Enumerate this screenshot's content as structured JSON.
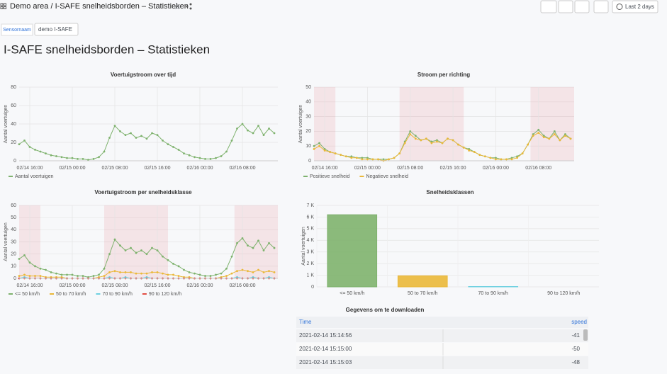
{
  "header": {
    "breadcrumb": "Demo area / I-SAFE snelheidsborden – Statistieken",
    "time_range": "Last 2 days"
  },
  "variables": {
    "label": "Sensornaam",
    "value": "demo I-SAFE"
  },
  "dashboard_title": "I-SAFE snelheidsborden – Statistieken",
  "chart_data": [
    {
      "type": "line",
      "title": "Voertuigstroom over tijd",
      "y_label": "Aantal voertuigen",
      "x": [
        "02/14 14:00",
        "02/14 15:00",
        "02/14 16:00",
        "02/14 17:00",
        "02/14 18:00",
        "02/14 19:00",
        "02/14 20:00",
        "02/14 21:00",
        "02/14 22:00",
        "02/14 23:00",
        "02/15 00:00",
        "02/15 01:00",
        "02/15 02:00",
        "02/15 03:00",
        "02/15 04:00",
        "02/15 05:00",
        "02/15 06:00",
        "02/15 07:00",
        "02/15 08:00",
        "02/15 09:00",
        "02/15 10:00",
        "02/15 11:00",
        "02/15 12:00",
        "02/15 13:00",
        "02/15 14:00",
        "02/15 15:00",
        "02/15 16:00",
        "02/15 17:00",
        "02/15 18:00",
        "02/15 19:00",
        "02/15 20:00",
        "02/15 21:00",
        "02/15 22:00",
        "02/15 23:00",
        "02/16 00:00",
        "02/16 01:00",
        "02/16 02:00",
        "02/16 03:00",
        "02/16 04:00",
        "02/16 05:00",
        "02/16 06:00",
        "02/16 07:00",
        "02/16 08:00",
        "02/16 09:00",
        "02/16 10:00",
        "02/16 11:00",
        "02/16 12:00",
        "02/16 13:00",
        "02/16 14:00"
      ],
      "xlim": [
        "02/14 14:00",
        "02/16 14:40"
      ],
      "xticks": [
        "02/14 16:00",
        "02/15 00:00",
        "02/15 08:00",
        "02/15 16:00",
        "02/16 00:00",
        "02/16 08:00"
      ],
      "ylim": [
        0,
        80
      ],
      "yticks": [
        0,
        20,
        40,
        60,
        80
      ],
      "grid": true,
      "series": [
        {
          "name": "Aantal voertuigen",
          "color": "#7eb26d",
          "values": [
            18,
            22,
            15,
            12,
            10,
            8,
            6,
            5,
            4,
            3,
            3,
            2,
            2,
            1,
            2,
            4,
            10,
            25,
            38,
            32,
            28,
            30,
            25,
            27,
            24,
            30,
            28,
            22,
            18,
            15,
            12,
            8,
            6,
            4,
            3,
            2,
            2,
            3,
            5,
            10,
            22,
            35,
            40,
            33,
            30,
            38,
            28,
            35,
            30
          ]
        }
      ]
    },
    {
      "type": "line",
      "title": "Stroom per richting",
      "y_label": "Aantal voertuigen",
      "x": [
        "02/14 14:00",
        "02/14 15:00",
        "02/14 16:00",
        "02/14 17:00",
        "02/14 18:00",
        "02/14 19:00",
        "02/14 20:00",
        "02/14 21:00",
        "02/14 22:00",
        "02/14 23:00",
        "02/15 00:00",
        "02/15 01:00",
        "02/15 02:00",
        "02/15 03:00",
        "02/15 04:00",
        "02/15 05:00",
        "02/15 06:00",
        "02/15 07:00",
        "02/15 08:00",
        "02/15 09:00",
        "02/15 10:00",
        "02/15 11:00",
        "02/15 12:00",
        "02/15 13:00",
        "02/15 14:00",
        "02/15 15:00",
        "02/15 16:00",
        "02/15 17:00",
        "02/15 18:00",
        "02/15 19:00",
        "02/15 20:00",
        "02/15 21:00",
        "02/15 22:00",
        "02/15 23:00",
        "02/16 00:00",
        "02/16 01:00",
        "02/16 02:00",
        "02/16 03:00",
        "02/16 04:00",
        "02/16 05:00",
        "02/16 06:00",
        "02/16 07:00",
        "02/16 08:00",
        "02/16 09:00",
        "02/16 10:00",
        "02/16 11:00",
        "02/16 12:00",
        "02/16 13:00",
        "02/16 14:00"
      ],
      "xlim": [
        "02/14 14:00",
        "02/16 14:40"
      ],
      "xticks": [
        "02/14 16:00",
        "02/15 00:00",
        "02/15 08:00",
        "02/15 16:00",
        "02/16 00:00",
        "02/16 08:00"
      ],
      "ylim": [
        0,
        50
      ],
      "yticks": [
        0,
        10,
        20,
        30,
        40,
        50
      ],
      "grid": true,
      "regions": [
        [
          "02/14 14:00",
          "02/14 18:00"
        ],
        [
          "02/15 06:00",
          "02/15 18:00"
        ],
        [
          "02/16 06:30",
          "02/16 14:40"
        ]
      ],
      "series": [
        {
          "name": "Positieve snelheid",
          "color": "#7eb26d",
          "values": [
            10,
            12,
            8,
            6,
            5,
            4,
            3,
            3,
            2,
            2,
            2,
            1,
            1,
            1,
            1,
            2,
            5,
            13,
            20,
            17,
            14,
            15,
            13,
            14,
            12,
            15,
            14,
            11,
            9,
            8,
            6,
            4,
            3,
            2,
            2,
            1,
            1,
            2,
            3,
            5,
            11,
            18,
            21,
            17,
            15,
            20,
            14,
            18,
            15
          ]
        },
        {
          "name": "Negatieve snelheid",
          "color": "#eab839",
          "values": [
            8,
            10,
            7,
            6,
            5,
            4,
            3,
            2,
            2,
            1,
            1,
            1,
            1,
            0,
            1,
            2,
            5,
            12,
            18,
            15,
            14,
            15,
            12,
            13,
            12,
            15,
            14,
            11,
            9,
            7,
            6,
            4,
            3,
            2,
            1,
            1,
            1,
            1,
            2,
            5,
            11,
            17,
            19,
            16,
            15,
            18,
            14,
            17,
            15
          ]
        }
      ]
    },
    {
      "type": "line",
      "title": "Voertuigstroom per snelheidsklasse",
      "y_label": "Aantal voertuigen",
      "x": [
        "02/14 14:00",
        "02/14 15:00",
        "02/14 16:00",
        "02/14 17:00",
        "02/14 18:00",
        "02/14 19:00",
        "02/14 20:00",
        "02/14 21:00",
        "02/14 22:00",
        "02/14 23:00",
        "02/15 00:00",
        "02/15 01:00",
        "02/15 02:00",
        "02/15 03:00",
        "02/15 04:00",
        "02/15 05:00",
        "02/15 06:00",
        "02/15 07:00",
        "02/15 08:00",
        "02/15 09:00",
        "02/15 10:00",
        "02/15 11:00",
        "02/15 12:00",
        "02/15 13:00",
        "02/15 14:00",
        "02/15 15:00",
        "02/15 16:00",
        "02/15 17:00",
        "02/15 18:00",
        "02/15 19:00",
        "02/15 20:00",
        "02/15 21:00",
        "02/15 22:00",
        "02/15 23:00",
        "02/16 00:00",
        "02/16 01:00",
        "02/16 02:00",
        "02/16 03:00",
        "02/16 04:00",
        "02/16 05:00",
        "02/16 06:00",
        "02/16 07:00",
        "02/16 08:00",
        "02/16 09:00",
        "02/16 10:00",
        "02/16 11:00",
        "02/16 12:00",
        "02/16 13:00",
        "02/16 14:00"
      ],
      "xlim": [
        "02/14 14:00",
        "02/16 14:40"
      ],
      "xticks": [
        "02/14 16:00",
        "02/15 00:00",
        "02/15 08:00",
        "02/15 16:00",
        "02/16 00:00",
        "02/16 08:00"
      ],
      "ylim": [
        0,
        60
      ],
      "yticks": [
        0,
        10,
        20,
        30,
        40,
        50,
        60
      ],
      "grid": true,
      "regions": [
        [
          "02/14 14:00",
          "02/14 18:00"
        ],
        [
          "02/15 06:00",
          "02/15 18:00"
        ],
        [
          "02/16 06:30",
          "02/16 14:40"
        ]
      ],
      "series": [
        {
          "name": "<= 50 km/h",
          "color": "#7eb26d",
          "values": [
            16,
            19,
            13,
            10,
            8,
            7,
            5,
            4,
            3,
            3,
            3,
            2,
            2,
            1,
            2,
            3,
            8,
            20,
            32,
            27,
            23,
            25,
            21,
            23,
            20,
            25,
            23,
            18,
            15,
            12,
            10,
            7,
            5,
            4,
            3,
            2,
            2,
            3,
            4,
            8,
            18,
            29,
            33,
            27,
            25,
            31,
            23,
            29,
            25
          ]
        },
        {
          "name": "50 to 70 km/h",
          "color": "#eab839",
          "values": [
            2,
            3,
            2,
            2,
            2,
            1,
            1,
            1,
            1,
            0,
            0,
            0,
            0,
            0,
            0,
            1,
            2,
            5,
            6,
            5,
            5,
            5,
            4,
            4,
            4,
            5,
            5,
            4,
            3,
            3,
            2,
            1,
            1,
            0,
            0,
            0,
            0,
            0,
            1,
            2,
            4,
            6,
            7,
            6,
            5,
            7,
            5,
            6,
            5
          ]
        },
        {
          "name": "70 to 90 km/h",
          "color": "#6ed0e0",
          "values": [
            0,
            1,
            0,
            0,
            0,
            0,
            0,
            0,
            0,
            0,
            0,
            0,
            0,
            0,
            0,
            0,
            0,
            1,
            0,
            0,
            1,
            0,
            0,
            0,
            1,
            0,
            0,
            0,
            0,
            0,
            0,
            0,
            0,
            0,
            0,
            0,
            0,
            0,
            0,
            0,
            0,
            1,
            0,
            0,
            1,
            0,
            0,
            1,
            0
          ]
        },
        {
          "name": "90 to 120 km/h",
          "color": "#e24d42",
          "values": [
            0,
            0,
            0,
            0,
            0,
            0,
            0,
            0,
            0,
            0,
            0,
            0,
            0,
            0,
            0,
            0,
            0,
            0,
            0,
            0,
            0,
            0,
            0,
            0,
            0,
            0,
            0,
            0,
            0,
            0,
            0,
            0,
            0,
            0,
            0,
            0,
            0,
            0,
            0,
            0,
            0,
            0,
            0,
            0,
            0,
            0,
            0,
            0,
            0
          ]
        }
      ]
    },
    {
      "type": "bar",
      "title": "Snelheidsklassen",
      "y_label": "Aantal voertuigen",
      "categories": [
        "<= 50 km/h",
        "50 to 70 km/h",
        "70 to 90 km/h",
        "90 to 120 km/h"
      ],
      "values": [
        6200,
        950,
        30,
        0
      ],
      "colors": [
        "#7eb26d",
        "#eab839",
        "#6ed0e0",
        "#e24d42"
      ],
      "ylim": [
        0,
        7000
      ],
      "yticks": [
        0,
        {
          "value": 1000,
          "label": "1 K"
        },
        {
          "value": 2000,
          "label": "2 K"
        },
        {
          "value": 3000,
          "label": "3 K"
        },
        {
          "value": 4000,
          "label": "4 K"
        },
        {
          "value": 5000,
          "label": "5 K"
        },
        {
          "value": 6000,
          "label": "6 K"
        },
        {
          "value": 7000,
          "label": "7 K"
        }
      ],
      "grid": true
    }
  ],
  "table": {
    "title": "Gegevens om te downloaden",
    "columns": [
      "Time",
      "speed"
    ],
    "rows": [
      [
        "2021-02-14 15:14:56",
        -41
      ],
      [
        "2021-02-14 15:15:00",
        -50
      ],
      [
        "2021-02-14 15:15:03",
        -48
      ]
    ]
  }
}
